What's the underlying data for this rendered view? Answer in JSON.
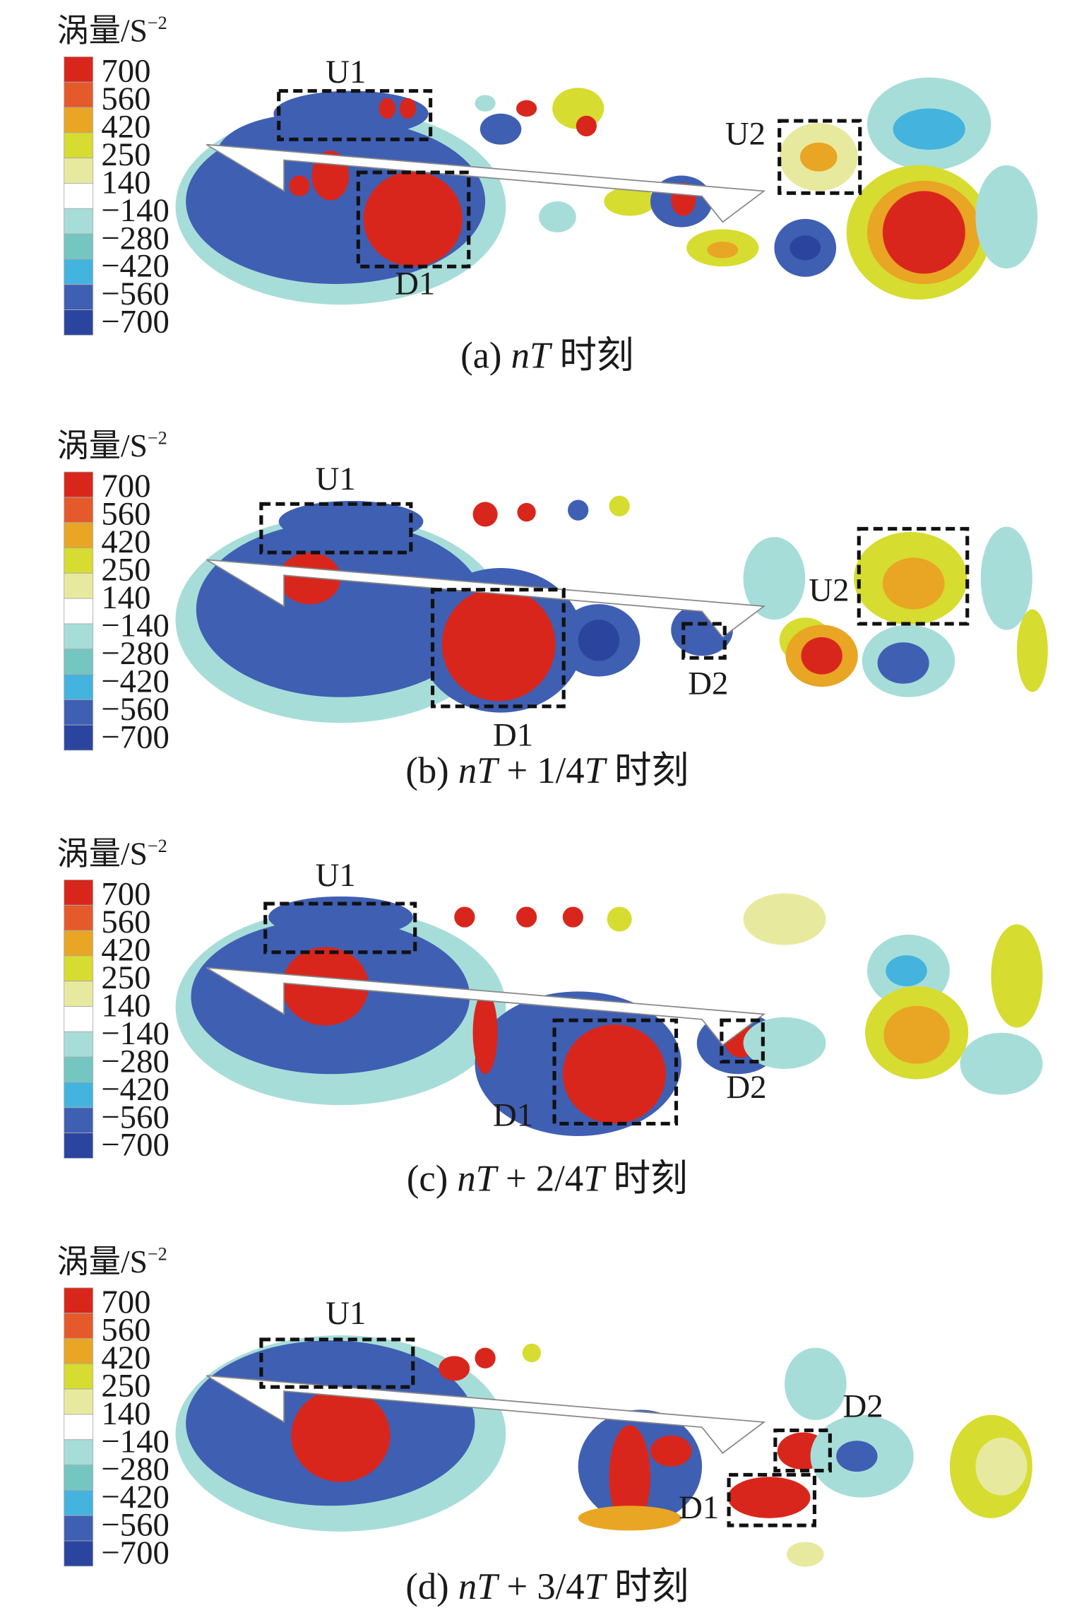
{
  "figure": {
    "colorbar_title": "涡量/S",
    "colorbar_title_exponent": "−2",
    "colorbar_labels": [
      "700",
      "560",
      "420",
      "250",
      "140",
      "−140",
      "−280",
      "−420",
      "−560",
      "−700"
    ],
    "colorbar_colors": [
      "#d9261c",
      "#e55a2b",
      "#e9a524",
      "#d7dc30",
      "#e7ea9e",
      "#ffffff",
      "#a7ddd9",
      "#74c6c1",
      "#44b4df",
      "#3f5fb3",
      "#2b459e"
    ],
    "panels": [
      {
        "id": "a",
        "caption_prefix": "(a)",
        "caption_nT": "nT",
        "caption_frac": "",
        "caption_T": "",
        "caption_suffix": "时刻",
        "boxes": [
          {
            "label": "U1"
          },
          {
            "label": "D1"
          },
          {
            "label": "U2"
          }
        ]
      },
      {
        "id": "b",
        "caption_prefix": "(b)",
        "caption_nT": "nT",
        "caption_frac": " + 1/4",
        "caption_T": "T",
        "caption_suffix": "时刻",
        "boxes": [
          {
            "label": "U1"
          },
          {
            "label": "D1"
          },
          {
            "label": "D2"
          },
          {
            "label": "U2"
          }
        ]
      },
      {
        "id": "c",
        "caption_prefix": "(c)",
        "caption_nT": "nT",
        "caption_frac": " + 2/4",
        "caption_T": "T",
        "caption_suffix": "时刻",
        "boxes": [
          {
            "label": "U1"
          },
          {
            "label": "D1"
          },
          {
            "label": "D2"
          }
        ]
      },
      {
        "id": "d",
        "caption_prefix": "(d)",
        "caption_nT": "nT",
        "caption_frac": " + 3/4",
        "caption_T": "T",
        "caption_suffix": "时刻",
        "boxes": [
          {
            "label": "U1"
          },
          {
            "label": "D2"
          },
          {
            "label": "D1"
          }
        ]
      }
    ]
  }
}
